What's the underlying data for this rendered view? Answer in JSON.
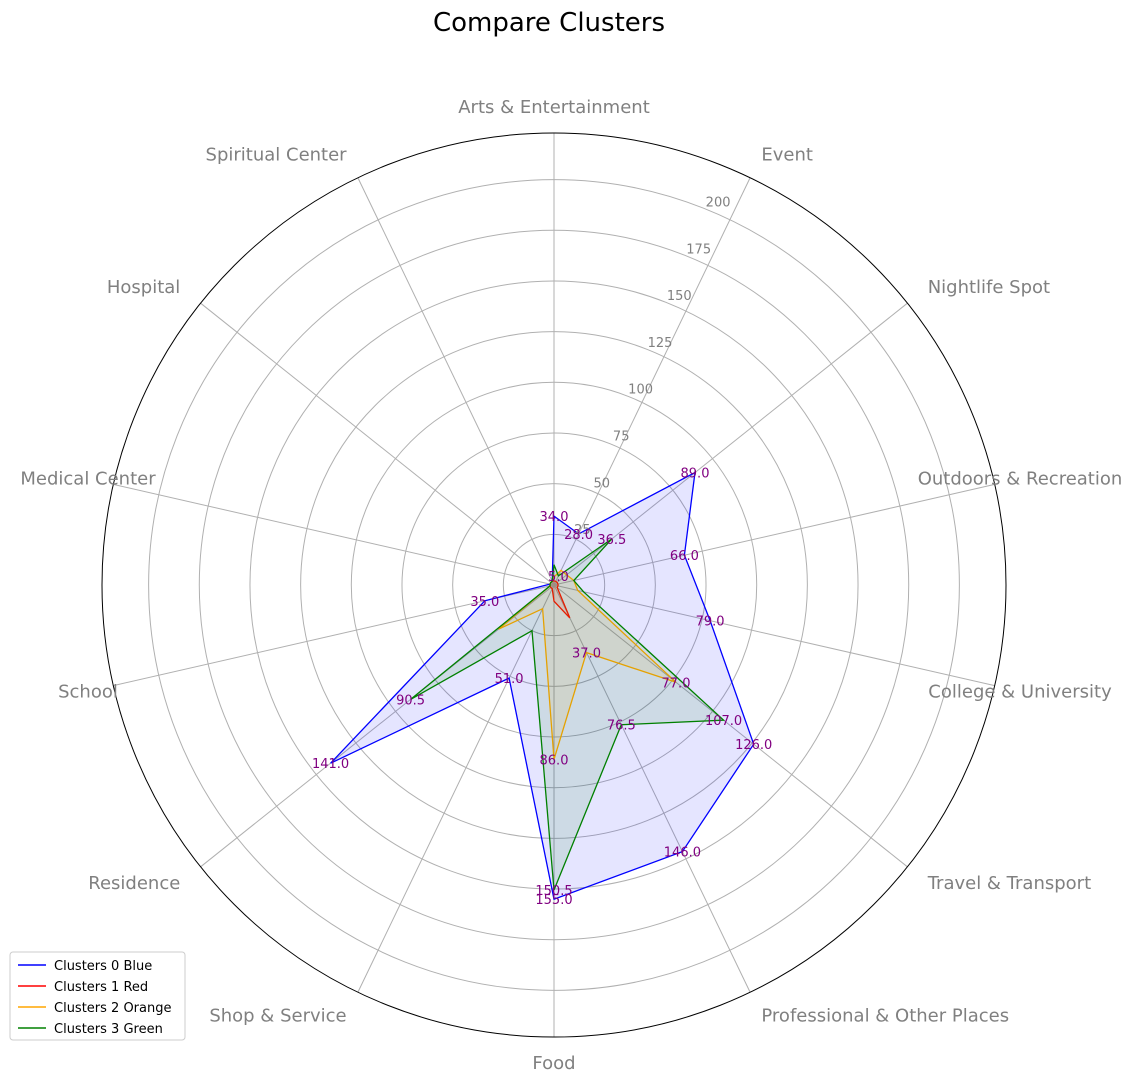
{
  "chart_data": {
    "type": "radar",
    "title": "Compare Clusters",
    "categories": [
      "Arts & Entertainment",
      "Event",
      "Nightlife Spot",
      "Outdoors & Recreation",
      "College & University",
      "Travel & Transport",
      "Professional & Other Places",
      "Food",
      "Shop & Service",
      "Residence",
      "School",
      "Medical Center",
      "Hospital",
      "Spiritual Center"
    ],
    "r_ticks": [
      "25",
      "50",
      "75",
      "100",
      "125",
      "150",
      "175",
      "200"
    ],
    "r_tick_values": [
      25,
      50,
      75,
      100,
      125,
      150,
      175,
      200
    ],
    "r_max": 223,
    "grid": true,
    "legend_position": "lower-left",
    "series": [
      {
        "name": "Clusters 0 Blue",
        "color": "#0000ff",
        "fill": true,
        "values": [
          34,
          28,
          89,
          66,
          79,
          126,
          146,
          155,
          51,
          141,
          35,
          2,
          2,
          2
        ]
      },
      {
        "name": "Clusters 1 Red",
        "color": "#ff0000",
        "fill": true,
        "values": [
          2,
          2,
          2,
          2,
          2,
          2,
          18,
          8,
          2,
          2,
          2,
          2,
          2,
          2
        ]
      },
      {
        "name": "Clusters 2 Orange",
        "color": "#ffa500",
        "fill": true,
        "values": [
          4,
          8,
          8,
          10,
          12,
          77,
          37,
          86,
          13,
          35,
          2,
          2,
          2,
          2
        ]
      },
      {
        "name": "Clusters 3 Green",
        "color": "#008000",
        "fill": true,
        "values": [
          10,
          5,
          36.5,
          10,
          15,
          107,
          76.5,
          150.5,
          25,
          90.5,
          2,
          2,
          2,
          2
        ]
      }
    ],
    "data_labels": [
      {
        "category": "Arts & Entertainment",
        "value": 34,
        "text": "34.0"
      },
      {
        "category": "Event",
        "value": 28,
        "text": "28.0"
      },
      {
        "category": "Event",
        "value": 5,
        "text": "5.0"
      },
      {
        "category": "Nightlife Spot",
        "value": 89,
        "text": "89.0"
      },
      {
        "category": "Nightlife Spot",
        "value": 36.5,
        "text": "36.5"
      },
      {
        "category": "Outdoors & Recreation",
        "value": 66,
        "text": "66.0"
      },
      {
        "category": "College & University",
        "value": 79,
        "text": "79.0"
      },
      {
        "category": "Travel & Transport",
        "value": 126,
        "text": "126.0"
      },
      {
        "category": "Travel & Transport",
        "value": 107,
        "text": "107.0"
      },
      {
        "category": "Travel & Transport",
        "value": 77,
        "text": "77.0"
      },
      {
        "category": "Professional & Other Places",
        "value": 146,
        "text": "146.0"
      },
      {
        "category": "Professional & Other Places",
        "value": 76.5,
        "text": "76.5"
      },
      {
        "category": "Professional & Other Places",
        "value": 37,
        "text": "37.0"
      },
      {
        "category": "Food",
        "value": 155,
        "text": "155.0"
      },
      {
        "category": "Food",
        "value": 150.5,
        "text": "150.5"
      },
      {
        "category": "Food",
        "value": 86,
        "text": "86.0"
      },
      {
        "category": "Shop & Service",
        "value": 51,
        "text": "51.0"
      },
      {
        "category": "Residence",
        "value": 141,
        "text": "141.0"
      },
      {
        "category": "Residence",
        "value": 90.5,
        "text": "90.5"
      },
      {
        "category": "School",
        "value": 35,
        "text": "35.0"
      }
    ]
  }
}
